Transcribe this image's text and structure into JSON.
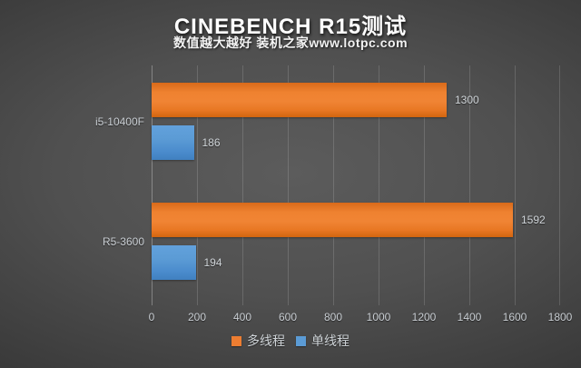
{
  "header": {
    "title": "CINEBENCH R15测试",
    "subtitle": "数值越大越好 装机之家www.lotpc.com"
  },
  "chart_data": {
    "type": "bar",
    "orientation": "horizontal",
    "title": "CINEBENCH R15测试",
    "subtitle": "数值越大越好 装机之家www.lotpc.com",
    "categories": [
      "i5-10400F",
      "R5-3600"
    ],
    "series": [
      {
        "name": "多线程",
        "key": "multithread",
        "color": "#ed7d31",
        "values": [
          1300,
          1592
        ]
      },
      {
        "name": "单线程",
        "key": "singlethread",
        "color": "#5b9bd5",
        "values": [
          186,
          194
        ]
      }
    ],
    "value_labels": [
      [
        1300,
        1592
      ],
      [
        186,
        194
      ]
    ],
    "xlim": [
      0,
      1800
    ],
    "xticks": [
      0,
      200,
      400,
      600,
      800,
      1000,
      1200,
      1400,
      1600,
      1800
    ],
    "grid": true,
    "legend_position": "bottom"
  },
  "colors": {
    "background_center": "#5c5c5c",
    "background_edge": "#262626",
    "title_text": "#ffffff",
    "chart_text": "#cfd4d8",
    "gridline": "rgba(255,255,255,0.15)",
    "multithread_bar": "#ed7d31",
    "singlethread_bar": "#5b9bd5"
  }
}
